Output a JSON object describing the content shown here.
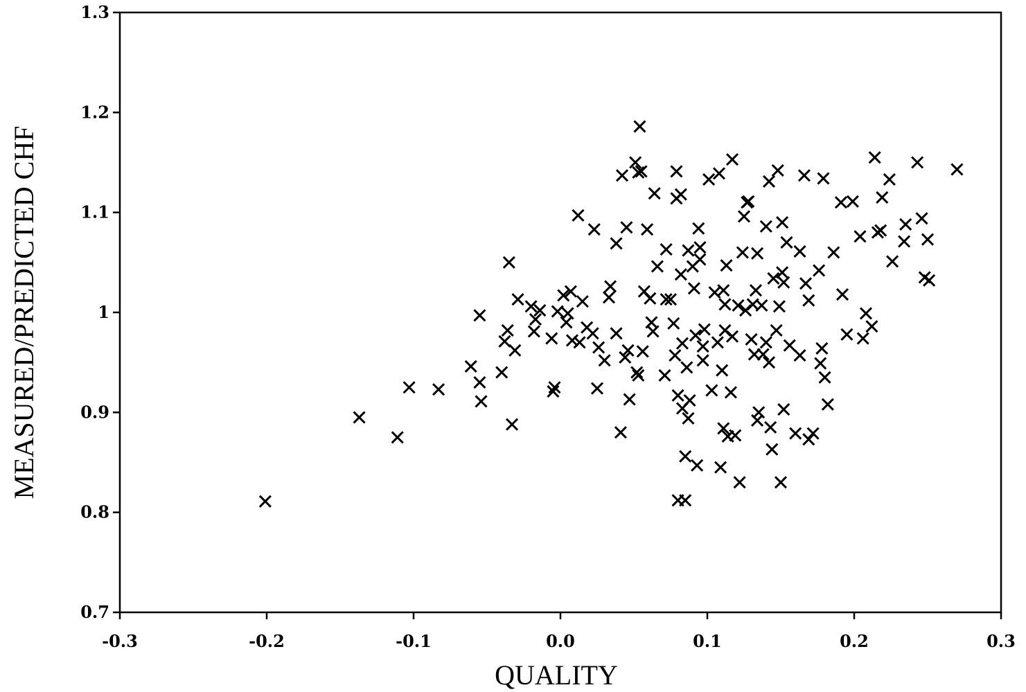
{
  "chart_data": {
    "type": "scatter",
    "title": "",
    "xlabel": "QUALITY",
    "ylabel": "MEASURED/PREDICTED CHF",
    "xlim": [
      -0.3,
      0.3
    ],
    "ylim": [
      0.7,
      1.3
    ],
    "x_ticks": [
      -0.3,
      -0.2,
      -0.1,
      0.0,
      0.1,
      0.2,
      0.3
    ],
    "x_tick_labels": [
      "-0.3",
      "-0.2",
      "-0.1",
      "0.0",
      "0.1",
      "0.2",
      "0.3"
    ],
    "y_ticks": [
      0.7,
      0.8,
      0.9,
      1.0,
      1.1,
      1.2,
      1.3
    ],
    "y_tick_labels": [
      "0.7",
      "0.8",
      "0.9",
      "1",
      "1.1",
      "1.2",
      "1.3"
    ],
    "grid": false,
    "marker": "x",
    "marker_color": "#000000",
    "series": [
      {
        "points": [
          [
            -0.201,
            0.811
          ],
          [
            -0.137,
            0.895
          ],
          [
            -0.111,
            0.875
          ],
          [
            -0.103,
            0.925
          ],
          [
            -0.083,
            0.923
          ],
          [
            -0.061,
            0.946
          ],
          [
            -0.055,
            0.93
          ],
          [
            -0.055,
            0.997
          ],
          [
            -0.054,
            0.911
          ],
          [
            -0.04,
            0.94
          ],
          [
            -0.038,
            0.971
          ],
          [
            -0.036,
            0.982
          ],
          [
            -0.035,
            1.05
          ],
          [
            -0.033,
            0.888
          ],
          [
            -0.031,
            0.962
          ],
          [
            -0.029,
            1.013
          ],
          [
            -0.02,
            1.006
          ],
          [
            -0.018,
            0.981
          ],
          [
            -0.017,
            0.993
          ],
          [
            -0.014,
            1.002
          ],
          [
            -0.006,
            0.974
          ],
          [
            -0.005,
            0.921
          ],
          [
            -0.004,
            0.925
          ],
          [
            -0.002,
            1.001
          ],
          [
            0.002,
            1.017
          ],
          [
            0.004,
            0.99
          ],
          [
            0.005,
            0.999
          ],
          [
            0.007,
            1.021
          ],
          [
            0.008,
            0.972
          ],
          [
            0.012,
            1.097
          ],
          [
            0.013,
            0.97
          ],
          [
            0.015,
            1.011
          ],
          [
            0.018,
            0.985
          ],
          [
            0.022,
            0.979
          ],
          [
            0.023,
            1.083
          ],
          [
            0.025,
            0.924
          ],
          [
            0.026,
            0.965
          ],
          [
            0.03,
            0.952
          ],
          [
            0.033,
            1.015
          ],
          [
            0.034,
            1.026
          ],
          [
            0.038,
            1.069
          ],
          [
            0.038,
            0.979
          ],
          [
            0.041,
            0.88
          ],
          [
            0.042,
            1.137
          ],
          [
            0.044,
            0.955
          ],
          [
            0.045,
            1.085
          ],
          [
            0.046,
            0.962
          ],
          [
            0.047,
            0.913
          ],
          [
            0.051,
            1.15
          ],
          [
            0.052,
            0.94
          ],
          [
            0.053,
            1.14
          ],
          [
            0.053,
            0.937
          ],
          [
            0.054,
            1.186
          ],
          [
            0.055,
            1.141
          ],
          [
            0.056,
            0.961
          ],
          [
            0.057,
            1.021
          ],
          [
            0.059,
            1.083
          ],
          [
            0.061,
            1.014
          ],
          [
            0.062,
            0.99
          ],
          [
            0.063,
            0.981
          ],
          [
            0.064,
            1.119
          ],
          [
            0.066,
            1.046
          ],
          [
            0.071,
            0.937
          ],
          [
            0.072,
            1.063
          ],
          [
            0.072,
            1.013
          ],
          [
            0.075,
            1.013
          ],
          [
            0.077,
            0.989
          ],
          [
            0.078,
            0.957
          ],
          [
            0.079,
            1.141
          ],
          [
            0.079,
            1.114
          ],
          [
            0.08,
            0.812
          ],
          [
            0.08,
            0.917
          ],
          [
            0.082,
            1.118
          ],
          [
            0.082,
            1.038
          ],
          [
            0.083,
            0.904
          ],
          [
            0.083,
            0.969
          ],
          [
            0.085,
            0.856
          ],
          [
            0.085,
            0.812
          ],
          [
            0.086,
            0.945
          ],
          [
            0.087,
            0.894
          ],
          [
            0.087,
            1.062
          ],
          [
            0.088,
            0.912
          ],
          [
            0.09,
            1.046
          ],
          [
            0.091,
            1.024
          ],
          [
            0.092,
            0.977
          ],
          [
            0.093,
            0.847
          ],
          [
            0.094,
            1.084
          ],
          [
            0.095,
            1.065
          ],
          [
            0.095,
            1.053
          ],
          [
            0.097,
            0.966
          ],
          [
            0.097,
            0.952
          ],
          [
            0.098,
            0.983
          ],
          [
            0.101,
            1.133
          ],
          [
            0.103,
            0.922
          ],
          [
            0.105,
            1.02
          ],
          [
            0.107,
            0.97
          ],
          [
            0.108,
            1.139
          ],
          [
            0.109,
            0.845
          ],
          [
            0.11,
            0.942
          ],
          [
            0.111,
            1.022
          ],
          [
            0.111,
            0.884
          ],
          [
            0.112,
            1.008
          ],
          [
            0.112,
            0.982
          ],
          [
            0.113,
            1.047
          ],
          [
            0.114,
            0.876
          ],
          [
            0.116,
            0.92
          ],
          [
            0.117,
            0.976
          ],
          [
            0.117,
            1.153
          ],
          [
            0.119,
            0.877
          ],
          [
            0.121,
            1.007
          ],
          [
            0.122,
            0.83
          ],
          [
            0.124,
            1.06
          ],
          [
            0.125,
            1.096
          ],
          [
            0.126,
            1.002
          ],
          [
            0.127,
            1.11
          ],
          [
            0.128,
            1.111
          ],
          [
            0.13,
            0.973
          ],
          [
            0.131,
            1.008
          ],
          [
            0.132,
            0.958
          ],
          [
            0.133,
            1.022
          ],
          [
            0.134,
            1.059
          ],
          [
            0.134,
            0.892
          ],
          [
            0.135,
            0.9
          ],
          [
            0.137,
            1.007
          ],
          [
            0.138,
            0.958
          ],
          [
            0.14,
            1.086
          ],
          [
            0.14,
            0.97
          ],
          [
            0.142,
            0.95
          ],
          [
            0.142,
            1.131
          ],
          [
            0.143,
            0.885
          ],
          [
            0.144,
            0.863
          ],
          [
            0.145,
            1.034
          ],
          [
            0.147,
            0.982
          ],
          [
            0.148,
            1.142
          ],
          [
            0.149,
            1.006
          ],
          [
            0.15,
            0.83
          ],
          [
            0.151,
            1.09
          ],
          [
            0.151,
            1.04
          ],
          [
            0.152,
            1.03
          ],
          [
            0.152,
            0.903
          ],
          [
            0.154,
            1.07
          ],
          [
            0.156,
            0.967
          ],
          [
            0.16,
            0.879
          ],
          [
            0.163,
            0.957
          ],
          [
            0.163,
            1.061
          ],
          [
            0.166,
            1.137
          ],
          [
            0.167,
            1.029
          ],
          [
            0.169,
            1.012
          ],
          [
            0.169,
            0.873
          ],
          [
            0.172,
            0.879
          ],
          [
            0.176,
            1.042
          ],
          [
            0.177,
            0.949
          ],
          [
            0.178,
            0.964
          ],
          [
            0.179,
            1.134
          ],
          [
            0.18,
            0.935
          ],
          [
            0.182,
            0.908
          ],
          [
            0.186,
            1.06
          ],
          [
            0.191,
            1.11
          ],
          [
            0.192,
            1.018
          ],
          [
            0.195,
            0.978
          ],
          [
            0.199,
            1.111
          ],
          [
            0.204,
            1.076
          ],
          [
            0.206,
            0.974
          ],
          [
            0.208,
            0.999
          ],
          [
            0.212,
            0.986
          ],
          [
            0.214,
            1.155
          ],
          [
            0.216,
            1.08
          ],
          [
            0.218,
            1.082
          ],
          [
            0.219,
            1.115
          ],
          [
            0.224,
            1.133
          ],
          [
            0.226,
            1.051
          ],
          [
            0.234,
            1.071
          ],
          [
            0.235,
            1.088
          ],
          [
            0.243,
            1.15
          ],
          [
            0.246,
            1.094
          ],
          [
            0.248,
            1.035
          ],
          [
            0.25,
            1.073
          ],
          [
            0.251,
            1.032
          ],
          [
            0.27,
            1.143
          ]
        ]
      }
    ]
  }
}
